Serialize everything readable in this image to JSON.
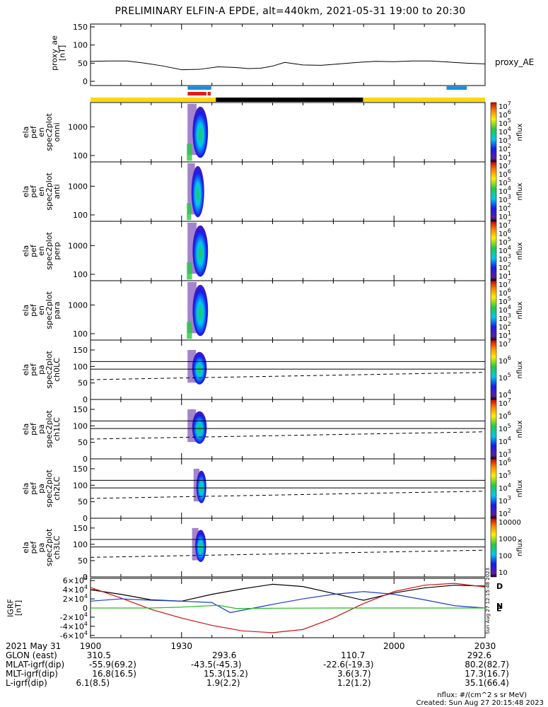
{
  "title": "PRELIMINARY ELFIN-A EPDE, alt=440km, 2021-05-31 19:00 to 20:30",
  "footer": {
    "units": "nflux: #/(cm^2 s sr MeV)",
    "created": "Created: Sun Aug 27 20:15:48 2023",
    "side_stamp": "Sun Aug 27 12:15:48 2023"
  },
  "colors": {
    "state_yellow": "#ffd800",
    "state_black": "#000000",
    "bar_blue": "#1a8fe0",
    "bar_red": "#e31a1c",
    "mag_black": "#000000",
    "mag_red": "#d01010",
    "mag_blue": "#1a3ccc",
    "mag_green": "#22bb22"
  },
  "orbit_table": {
    "header_label": "2021 May 31",
    "rows": [
      {
        "label": "GLON (east)",
        "values": [
          "310.5",
          "293.6",
          "110.7",
          "292.6"
        ]
      },
      {
        "label": "MLAT-igrf(dip)",
        "values": [
          "-55.9(69.2)",
          "-43.5(-45.3)",
          "-22.6(-19.3)",
          "80.2(82.7)"
        ]
      },
      {
        "label": "MLT-igrf(dip)",
        "values": [
          "16.8(16.5)",
          "15.3(15.2)",
          "3.6(3.7)",
          "17.3(16.7)"
        ]
      },
      {
        "label": "L-igrf(dip)",
        "values": [
          "6.1(8.5)",
          "1.9(2.2)",
          "1.2(1.2)",
          "35.1(66.4)"
        ]
      }
    ]
  },
  "chart_data": [
    {
      "type": "line",
      "panel": "proxy_ae",
      "ylabel": "proxy_ae [nT]",
      "legend": "proxy_AE",
      "ylim": [
        0,
        150
      ],
      "yticks": [
        "0",
        "50",
        "100",
        "150"
      ],
      "x": [
        1900,
        1906,
        1912,
        1918,
        1924,
        1930,
        1936,
        1942,
        1948,
        1952,
        1956,
        1960,
        1964,
        1970,
        1976,
        1982,
        1988,
        1994,
        2000,
        2006,
        2012,
        2018,
        2024,
        2030
      ],
      "values": [
        55,
        56,
        56,
        50,
        42,
        32,
        33,
        40,
        38,
        35,
        36,
        42,
        52,
        45,
        44,
        48,
        52,
        55,
        54,
        56,
        56,
        53,
        50,
        48
      ]
    },
    {
      "type": "bar",
      "panel": "state_bars",
      "bars": [
        {
          "row": "top",
          "color": "bar_blue",
          "x0": 1932.0,
          "x1": 1939.8
        },
        {
          "row": "top",
          "color": "bar_blue",
          "x0": 2017.3,
          "x1": 2024.0
        },
        {
          "row": "mid",
          "color": "bar_red",
          "x0": 1932.0,
          "x1": 1938.2
        },
        {
          "row": "mid",
          "color": "bar_red",
          "x0": 1938.6,
          "x1": 1939.6
        },
        {
          "row": "bottom",
          "color": "state_yellow",
          "x0": 1900,
          "x1": 1941.3
        },
        {
          "row": "bottom",
          "color": "state_black",
          "x0": 1941.3,
          "x1": 1989.8
        },
        {
          "row": "bottom",
          "color": "state_yellow",
          "x0": 1989.8,
          "x1": 2030
        }
      ]
    },
    {
      "type": "heatmap",
      "panel": "omni",
      "ylabel": "ela pef en spec2plot omni [keV]",
      "scale": "log",
      "ylim": [
        60,
        7000
      ],
      "yticks": [
        "100",
        "1000"
      ],
      "x_range": [
        1931.5,
        1940.0
      ],
      "colorbar": {
        "label": "nflux",
        "range": [
          10,
          10000000
        ],
        "ticks": [
          "10",
          "10",
          "10",
          "10",
          "10",
          "10",
          "10"
        ],
        "exponents": [
          "7",
          "6",
          "5",
          "4",
          "3",
          "2",
          "1"
        ]
      }
    },
    {
      "type": "heatmap",
      "panel": "anti",
      "ylabel": "ela pef en spec2plot anti [keV]",
      "scale": "log",
      "ylim": [
        60,
        7000
      ],
      "yticks": [
        "100",
        "1000"
      ],
      "x_range": [
        1931.5,
        1938.5
      ],
      "colorbar": {
        "label": "nflux",
        "range": [
          10,
          10000000
        ],
        "ticks": [
          "10",
          "10",
          "10",
          "10",
          "10",
          "10",
          "10"
        ],
        "exponents": [
          "7",
          "6",
          "5",
          "4",
          "3",
          "2",
          "1"
        ]
      }
    },
    {
      "type": "heatmap",
      "panel": "perp",
      "ylabel": "ela pef en spec2plot perp [keV]",
      "scale": "log",
      "ylim": [
        60,
        7000
      ],
      "yticks": [
        "100",
        "1000"
      ],
      "x_range": [
        1931.5,
        1940.0
      ],
      "colorbar": {
        "label": "nflux",
        "range": [
          10,
          10000000
        ],
        "ticks": [
          "10",
          "10",
          "10",
          "10",
          "10",
          "10",
          "10"
        ],
        "exponents": [
          "7",
          "6",
          "5",
          "4",
          "3",
          "2",
          "1"
        ]
      }
    },
    {
      "type": "heatmap",
      "panel": "para",
      "ylabel": "ela pef en spec2plot para [keV]",
      "scale": "log",
      "ylim": [
        60,
        7000
      ],
      "yticks": [
        "100",
        "1000"
      ],
      "x_range": [
        1931.5,
        1940.0
      ],
      "colorbar": {
        "label": "nflux",
        "range": [
          10,
          10000000
        ],
        "ticks": [
          "10",
          "10",
          "10",
          "10",
          "10",
          "10",
          "10"
        ],
        "exponents": [
          "7",
          "6",
          "5",
          "4",
          "3",
          "2",
          "1"
        ]
      }
    },
    {
      "type": "heatmap",
      "panel": "ch0LC",
      "ylabel": "ela pef pa spec2plot ch0LC [deg]",
      "ylim": [
        0,
        180
      ],
      "yticks": [
        "0",
        "50",
        "100",
        "150"
      ],
      "x_range": [
        1931.5,
        1939.5
      ],
      "lines": {
        "solid": [
          115,
          92
        ],
        "dashed_start": 60,
        "dashed_end": 82
      },
      "colorbar": {
        "label": "nflux",
        "range": [
          1000,
          10000000
        ],
        "ticks": [
          "10",
          "10",
          "10",
          "10"
        ],
        "exponents": [
          "7",
          "6",
          "5",
          "4"
        ]
      }
    },
    {
      "type": "heatmap",
      "panel": "ch1LC",
      "ylabel": "ela pef pa spec2plot ch1LC [deg]",
      "ylim": [
        0,
        180
      ],
      "yticks": [
        "0",
        "50",
        "100",
        "150"
      ],
      "x_range": [
        1931.5,
        1939.5
      ],
      "lines": {
        "solid": [
          115,
          92
        ],
        "dashed_start": 60,
        "dashed_end": 82
      },
      "colorbar": {
        "label": "nflux",
        "range": [
          100,
          10000000
        ],
        "ticks": [
          "10",
          "10",
          "10",
          "10",
          "10"
        ],
        "exponents": [
          "7",
          "6",
          "5",
          "4",
          "3"
        ]
      }
    },
    {
      "type": "heatmap",
      "panel": "ch2LC",
      "ylabel": "ela pef pa spec2plot ch2LC [deg]",
      "ylim": [
        0,
        180
      ],
      "yticks": [
        "0",
        "50",
        "100",
        "150"
      ],
      "x_range": [
        1933.5,
        1939.0
      ],
      "lines": {
        "solid": [
          115,
          92
        ],
        "dashed_start": 60,
        "dashed_end": 82
      },
      "colorbar": {
        "label": "nflux",
        "range": [
          10,
          1000000
        ],
        "ticks": [
          "10",
          "10",
          "10",
          "10",
          "10"
        ],
        "exponents": [
          "6",
          "5",
          "4",
          "3",
          "2"
        ]
      }
    },
    {
      "type": "heatmap",
      "panel": "ch3LC",
      "ylabel": "ela pef pa spec2plot ch3LC [deg]",
      "ylim": [
        0,
        180
      ],
      "yticks": [
        "0",
        "50",
        "100",
        "150"
      ],
      "x_range": [
        1933.0,
        1939.0
      ],
      "lines": {
        "solid": [
          115,
          92
        ],
        "dashed_start": 60,
        "dashed_end": 82
      },
      "colorbar": {
        "label": "nflux",
        "range": [
          10,
          100000
        ],
        "ticks": [
          "10000",
          "1000",
          "100",
          "10"
        ],
        "exponents": [
          "",
          "",
          "",
          ""
        ]
      }
    },
    {
      "type": "line",
      "panel": "igrf",
      "ylabel": "IGRF [nT]",
      "ylim": [
        -65000,
        65000
      ],
      "yticks": [
        {
          "v": 60000,
          "m": "6",
          "e": "4"
        },
        {
          "v": 40000,
          "m": "4",
          "e": "4"
        },
        {
          "v": 20000,
          "m": "2",
          "e": "4"
        },
        {
          "v": 0,
          "m": "0",
          "e": ""
        },
        {
          "v": -20000,
          "m": "-2",
          "e": "4"
        },
        {
          "v": -40000,
          "m": "-4",
          "e": "4"
        },
        {
          "v": -60000,
          "m": "-6",
          "e": "4"
        }
      ],
      "series_labels": [
        {
          "text": "D",
          "color": "mag_red",
          "v": 48000
        },
        {
          "text": "N",
          "color": "mag_blue",
          "v": 5000
        },
        {
          "text": "E",
          "color": "mag_green",
          "v": -1000
        }
      ],
      "series": [
        {
          "color": "mag_black",
          "x": [
            1900,
            1910,
            1920,
            1930,
            1940,
            1950,
            1960,
            1970,
            1980,
            1990,
            2000,
            2010,
            2020,
            2030
          ],
          "values": [
            40000,
            30000,
            18000,
            15000,
            30000,
            42000,
            52000,
            47000,
            32000,
            17000,
            33000,
            44000,
            50000,
            48000
          ]
        },
        {
          "color": "mag_red",
          "x": [
            1900,
            1910,
            1920,
            1930,
            1940,
            1950,
            1960,
            1970,
            1980,
            1990,
            2000,
            2010,
            2020,
            2030
          ],
          "values": [
            45000,
            22000,
            -3000,
            -22000,
            -38000,
            -50000,
            -54000,
            -47000,
            -22000,
            10000,
            36000,
            50000,
            54000,
            46000
          ]
        },
        {
          "color": "mag_blue",
          "x": [
            1900,
            1910,
            1920,
            1930,
            1940,
            1946,
            1950,
            1960,
            1970,
            1980,
            1990,
            2000,
            2010,
            2020,
            2030
          ],
          "values": [
            15000,
            20000,
            17000,
            15000,
            12000,
            -10000,
            -5000,
            8000,
            20000,
            30000,
            36000,
            30000,
            18000,
            5000,
            0
          ]
        },
        {
          "color": "mag_green",
          "x": [
            1900,
            1910,
            1920,
            1930,
            1942,
            1948,
            1960,
            1980,
            2000,
            2030
          ],
          "values": [
            0,
            0,
            0,
            2000,
            6000,
            -1000,
            -500,
            0,
            0,
            0
          ]
        }
      ]
    },
    {
      "type": "table",
      "panel": "x_axis",
      "ticks": [
        1900,
        1930,
        2000,
        2030
      ],
      "labels": [
        "1900",
        "1930",
        "2000",
        "2030"
      ]
    }
  ]
}
